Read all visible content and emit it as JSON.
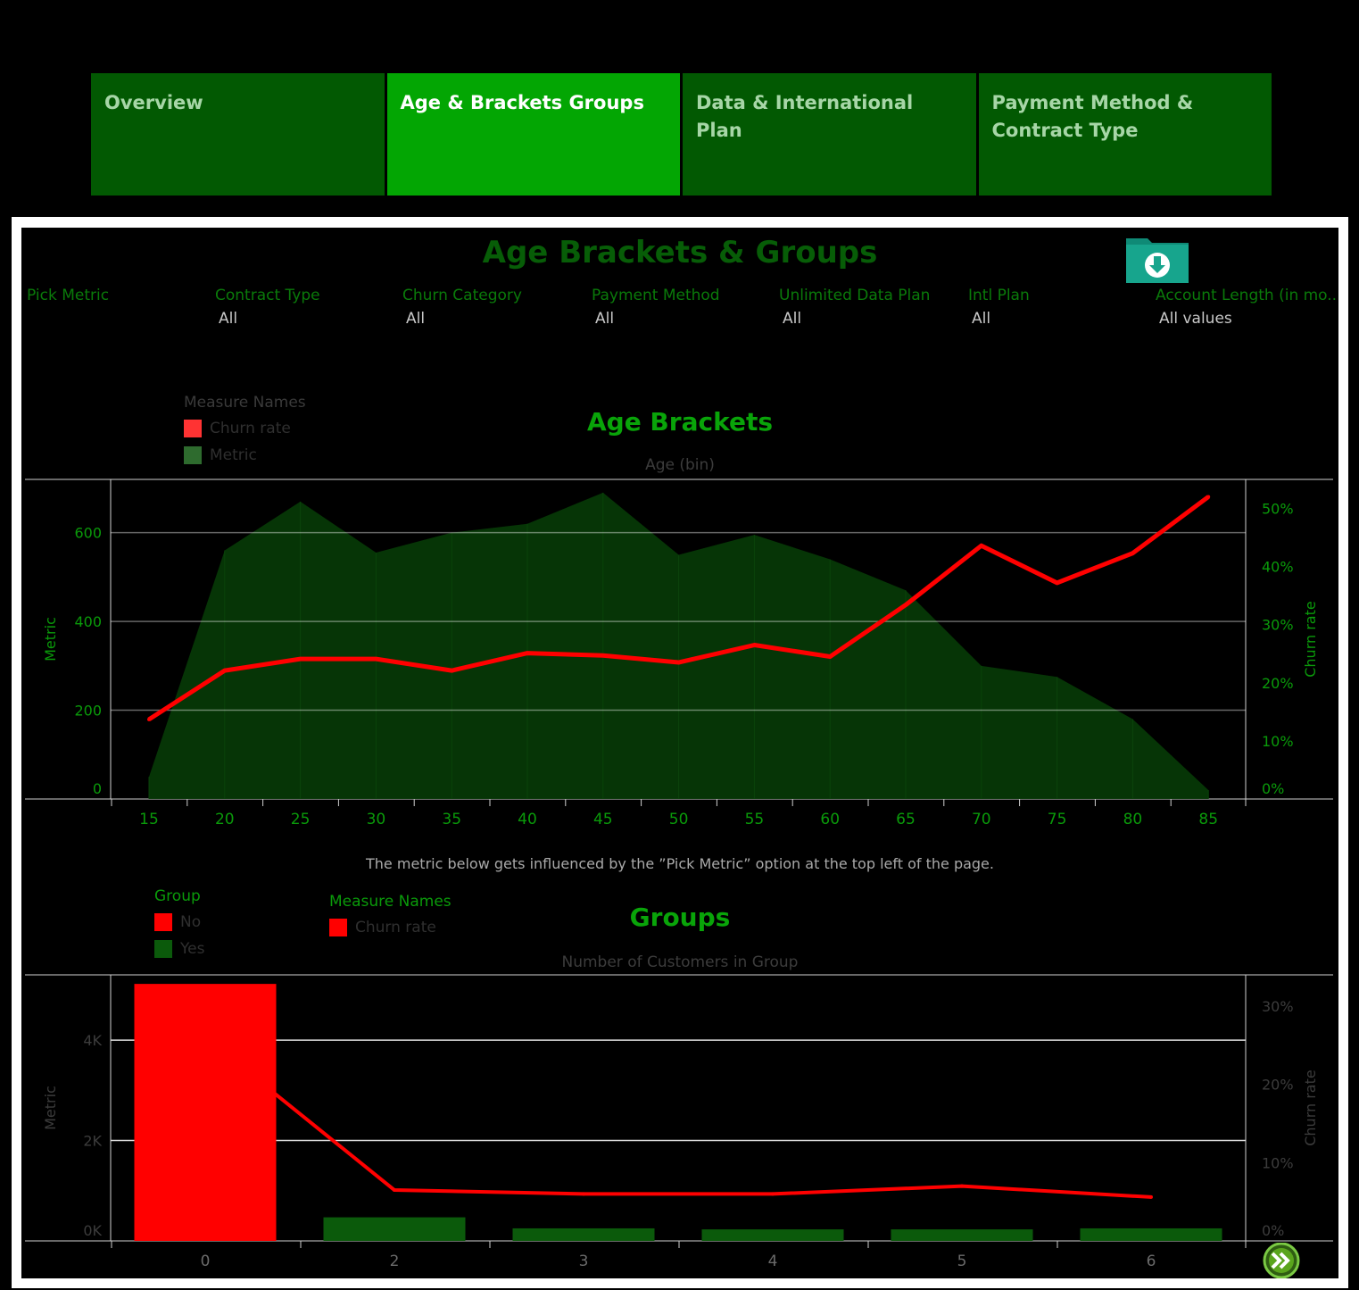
{
  "tabs": [
    {
      "label": "Overview",
      "active": false
    },
    {
      "label": "Age & Brackets Groups",
      "active": true
    },
    {
      "label": "Data & International Plan",
      "active": false
    },
    {
      "label": "Payment Method & Contract Type",
      "active": false
    }
  ],
  "dashboard": {
    "title": "Age Brackets & Groups",
    "download_icon": "folder-download-icon",
    "next_icon": "double-chevron-right-icon",
    "filters": [
      {
        "label": "Pick Metric",
        "value": ""
      },
      {
        "label": "Contract Type",
        "value": "All"
      },
      {
        "label": "Churn Category",
        "value": "All"
      },
      {
        "label": "Payment Method",
        "value": "All"
      },
      {
        "label": "Unlimited Data Plan",
        "value": "All"
      },
      {
        "label": "Intl Plan",
        "value": "All"
      },
      {
        "label": "Account Length (in mo..",
        "value": "All values"
      }
    ],
    "note": "The metric below gets influenced by the ”Pick Metric” option at the top left of the page."
  },
  "legend1": {
    "title": "Measure Names",
    "items": [
      {
        "label": "Churn rate",
        "color": "#ff3333"
      },
      {
        "label": "Metric",
        "color": "#2e6b2e"
      }
    ]
  },
  "legend2_group": {
    "title": "Group",
    "items": [
      {
        "label": "No",
        "color": "#ff0000"
      },
      {
        "label": "Yes",
        "color": "#0b5a0b"
      }
    ]
  },
  "legend2_measure": {
    "title": "Measure Names",
    "items": [
      {
        "label": "Churn rate",
        "color": "#ff0000"
      }
    ]
  },
  "chart_data": [
    {
      "type": "area",
      "title": "Age Brackets",
      "xlabel": "Age (bin)",
      "ylabel": "Metric",
      "ylabel2": "Churn rate",
      "x": [
        15,
        20,
        25,
        30,
        35,
        40,
        45,
        50,
        55,
        60,
        65,
        70,
        75,
        80,
        85
      ],
      "ylim": [
        0,
        720
      ],
      "y2lim": [
        0,
        0.55
      ],
      "yticks": [
        "0",
        "200",
        "400",
        "600"
      ],
      "y2ticks": [
        "0%",
        "10%",
        "20%",
        "30%",
        "40%",
        "50%"
      ],
      "series": [
        {
          "name": "Metric",
          "type": "area",
          "color": "#063806",
          "values": [
            50,
            560,
            670,
            555,
            600,
            620,
            690,
            550,
            595,
            540,
            470,
            300,
            275,
            180,
            20
          ]
        },
        {
          "name": "Churn rate",
          "type": "line",
          "color": "#ff0000",
          "values": [
            0.137,
            0.221,
            0.241,
            0.241,
            0.221,
            0.251,
            0.247,
            0.235,
            0.265,
            0.245,
            0.334,
            0.436,
            0.372,
            0.423,
            0.52
          ]
        }
      ]
    },
    {
      "type": "bar",
      "title": "Groups",
      "xlabel": "Number of Customers in Group",
      "ylabel": "Metric",
      "ylabel2": "Churn rate",
      "categories": [
        "0",
        "2",
        "3",
        "4",
        "5",
        "6"
      ],
      "ylim": [
        0,
        5300
      ],
      "y2lim": [
        0,
        0.34
      ],
      "yticks": [
        "0K",
        "2K",
        "4K"
      ],
      "y2ticks": [
        "0%",
        "10%",
        "20%",
        "30%"
      ],
      "series": [
        {
          "name": "Metric",
          "type": "bar",
          "values": [
            5120,
            470,
            250,
            230,
            230,
            250
          ],
          "groups": [
            "No",
            "Yes",
            "Yes",
            "Yes",
            "Yes",
            "Yes"
          ]
        },
        {
          "name": "Churn rate",
          "type": "line",
          "color": "#ff0000",
          "values": [
            0.26,
            0.065,
            0.06,
            0.06,
            0.07,
            0.056
          ]
        }
      ]
    }
  ]
}
